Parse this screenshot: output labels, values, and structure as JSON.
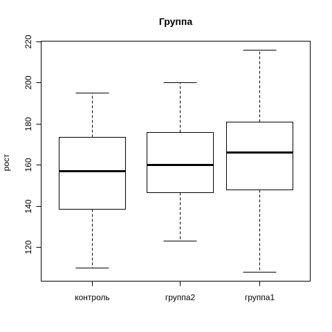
{
  "chart_data": {
    "type": "boxplot",
    "title": "Группа",
    "xlabel": "",
    "ylabel": "рост",
    "ylim": [
      104,
      221
    ],
    "yticks": [
      120,
      140,
      160,
      180,
      200,
      220
    ],
    "categories": [
      "контроль",
      "группа2",
      "группа1"
    ],
    "boxes": [
      {
        "category": "контроль",
        "whisker_low": 110,
        "q1": 138.5,
        "median": 157,
        "q3": 173.5,
        "whisker_high": 195
      },
      {
        "category": "группа2",
        "whisker_low": 123,
        "q1": 146.5,
        "median": 160,
        "q3": 176,
        "whisker_high": 200
      },
      {
        "category": "группа1",
        "whisker_low": 108,
        "q1": 148,
        "median": 166,
        "q3": 181,
        "whisker_high": 216
      }
    ],
    "grid": false,
    "colors": {
      "stroke": "#000000",
      "fill": "#ffffff"
    }
  }
}
